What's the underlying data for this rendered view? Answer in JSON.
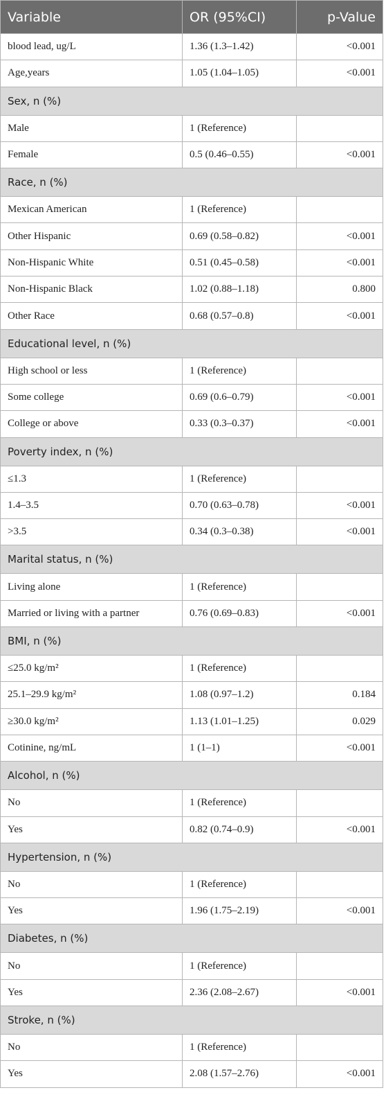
{
  "table": {
    "header": [
      "Variable",
      "OR (95%CI)",
      "p-Value"
    ],
    "rows": [
      [
        "blood lead, ug/L",
        "1.36 (1.3–1.42)",
        "<0.001"
      ],
      [
        "Age,years",
        "1.05 (1.04–1.05)",
        "<0.001"
      ],
      [
        "Sex, n (%)"
      ],
      [
        "Male",
        "1 (Reference)"
      ],
      [
        "Female",
        "0.5 (0.46–0.55)",
        "<0.001"
      ],
      [
        "Race, n (%)"
      ],
      [
        "Mexican American",
        "1 (Reference)"
      ],
      [
        "Other Hispanic",
        "0.69 (0.58–0.82)",
        "<0.001"
      ],
      [
        "Non-Hispanic White",
        "0.51 (0.45–0.58)",
        "<0.001"
      ],
      [
        "Non-Hispanic Black",
        "1.02 (0.88–1.18)",
        "0.800"
      ],
      [
        "Other Race",
        "0.68 (0.57–0.8)",
        "<0.001"
      ],
      [
        "Educational level, n (%)"
      ],
      [
        "High school or less",
        "1 (Reference)"
      ],
      [
        "Some college",
        "0.69 (0.6–0.79)",
        "<0.001"
      ],
      [
        "College or above",
        "0.33 (0.3–0.37)",
        "<0.001"
      ],
      [
        "Poverty index, n (%)"
      ],
      [
        "≤1.3",
        "1 (Reference)"
      ],
      [
        "1.4–3.5",
        "0.70 (0.63–0.78)",
        "<0.001"
      ],
      [
        ">3.5",
        "0.34 (0.3–0.38)",
        "<0.001"
      ],
      [
        "Marital status, n (%)"
      ],
      [
        "Living alone",
        "1 (Reference)"
      ],
      [
        "Married or living with a partner",
        "0.76 (0.69–0.83)",
        "<0.001"
      ],
      [
        "BMI, n (%)"
      ],
      [
        "≤25.0 kg/m²",
        "1 (Reference)"
      ],
      [
        "25.1–29.9 kg/m²",
        "1.08 (0.97–1.2)",
        "0.184"
      ],
      [
        "≥30.0 kg/m²",
        "1.13 (1.01–1.25)",
        "0.029"
      ],
      [
        "Cotinine, ng/mL",
        "1 (1–1)",
        "<0.001"
      ],
      [
        "Alcohol, n (%)"
      ],
      [
        "No",
        "1 (Reference)"
      ],
      [
        "Yes",
        "0.82 (0.74–0.9)",
        "<0.001"
      ],
      [
        "Hypertension, n (%)"
      ],
      [
        "No",
        "1 (Reference)"
      ],
      [
        "Yes",
        "1.96 (1.75–2.19)",
        "<0.001"
      ],
      [
        "Diabetes, n (%)"
      ],
      [
        "No",
        "1 (Reference)"
      ],
      [
        "Yes",
        "2.36 (2.08–2.67)",
        "<0.001"
      ],
      [
        "Stroke, n (%)"
      ],
      [
        "No",
        "1 (Reference)"
      ],
      [
        "Yes",
        "2.08 (1.57–2.76)",
        "<0.001"
      ]
    ]
  }
}
